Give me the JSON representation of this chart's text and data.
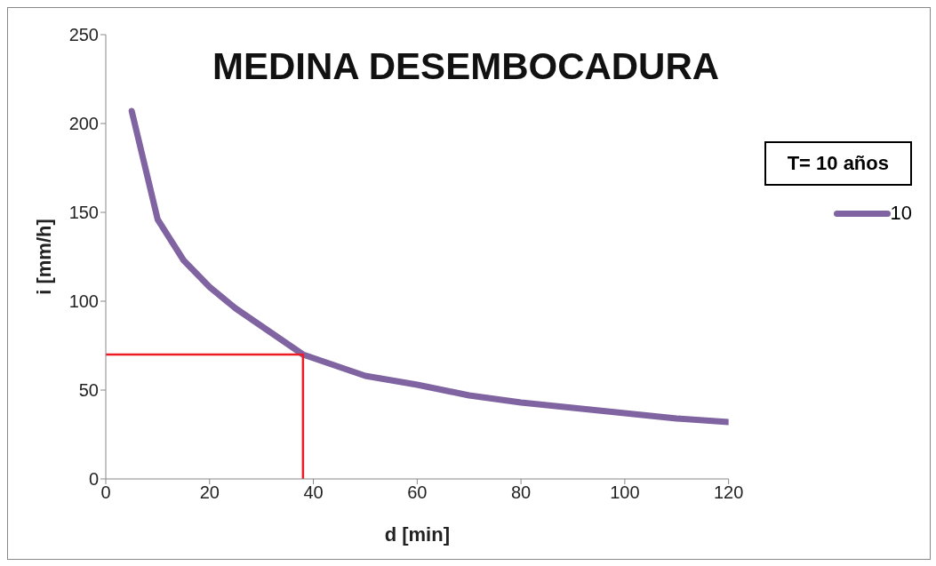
{
  "chart_data": {
    "type": "line",
    "title": "MEDINA DESEMBOCADURA",
    "xlabel": "d [min]",
    "ylabel": "i [mm/h]",
    "legend_title": "T= 10 años",
    "legend": "top right",
    "grid": false,
    "marker": "none",
    "line_style": "solid",
    "xlim": [
      0,
      120
    ],
    "xticks": [
      0,
      20,
      40,
      60,
      80,
      100,
      120
    ],
    "ylim": [
      0,
      250
    ],
    "yticks": [
      0,
      50,
      100,
      150,
      200,
      250
    ],
    "series": [
      {
        "name": "10",
        "color": "#8064a2",
        "x": [
          5,
          10,
          15,
          20,
          25,
          30,
          38,
          45,
          50,
          60,
          70,
          80,
          90,
          100,
          110,
          120
        ],
        "values": [
          207,
          146,
          123,
          108,
          96,
          86,
          70,
          63,
          58,
          53,
          47,
          43,
          40,
          37,
          34,
          32
        ]
      },
      {
        "color": "#ed1c24",
        "x": [
          0,
          38,
          38
        ],
        "values": [
          70,
          70,
          0
        ]
      }
    ]
  }
}
